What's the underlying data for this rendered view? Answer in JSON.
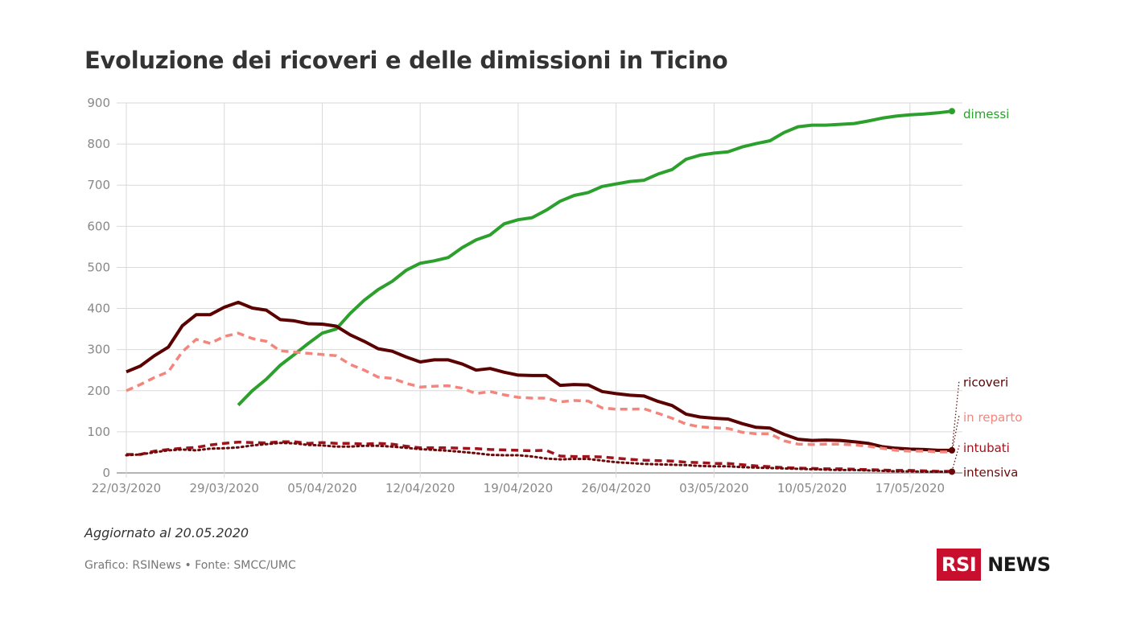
{
  "title": "Evoluzione dei ricoveri e delle dimissioni in Ticino",
  "updated": "Aggiornato al 20.05.2020",
  "source": "Grafico: RSINews • Fonte: SMCC/UMC",
  "logo": {
    "rsi": "RSI",
    "news": "NEWS"
  },
  "chart_data": {
    "type": "line",
    "title": "Evoluzione dei ricoveri e delle dimissioni in Ticino",
    "xlabel": "",
    "ylabel": "",
    "x_start": "22/03/2020",
    "x_end": "20/05/2020",
    "ylim": [
      0,
      900
    ],
    "yticks": [
      0,
      100,
      200,
      300,
      400,
      500,
      600,
      700,
      800,
      900
    ],
    "xtick_labels": [
      "22/03/2020",
      "29/03/2020",
      "05/04/2020",
      "12/04/2020",
      "19/04/2020",
      "26/04/2020",
      "03/05/2020",
      "10/05/2020",
      "17/05/2020"
    ],
    "grid": true,
    "series": [
      {
        "name": "dimessi",
        "color": "#2ca02c",
        "style": "solid",
        "start": "30/03/2020",
        "values": [
          165,
          200,
          228,
          262,
          288,
          315,
          340,
          350,
          388,
          420,
          446,
          466,
          493,
          510,
          516,
          524,
          548,
          567,
          579,
          606,
          616,
          621,
          639,
          661,
          675,
          682,
          697,
          703,
          709,
          712,
          727,
          738,
          763,
          773,
          778,
          781,
          793,
          801,
          808,
          828,
          842,
          846,
          846,
          848,
          850,
          856,
          863,
          868,
          871,
          873,
          876,
          880
        ]
      },
      {
        "name": "ricoveri",
        "color": "#5a0000",
        "style": "solid",
        "start": "22/03/2020",
        "values": [
          246,
          260,
          285,
          306,
          358,
          385,
          385,
          403,
          415,
          401,
          396,
          373,
          370,
          363,
          362,
          357,
          336,
          320,
          302,
          296,
          282,
          270,
          275,
          275,
          265,
          250,
          254,
          245,
          238,
          237,
          237,
          213,
          215,
          214,
          198,
          193,
          189,
          187,
          174,
          164,
          143,
          136,
          133,
          131,
          120,
          111,
          109,
          94,
          82,
          79,
          80,
          79,
          76,
          72,
          64,
          60,
          58,
          57,
          55,
          55
        ]
      },
      {
        "name": "in reparto",
        "color": "#f4857c",
        "style": "dashed",
        "start": "22/03/2020",
        "values": [
          200,
          215,
          232,
          246,
          295,
          325,
          315,
          332,
          340,
          327,
          320,
          297,
          294,
          291,
          288,
          285,
          264,
          250,
          233,
          230,
          218,
          209,
          211,
          212,
          206,
          193,
          198,
          190,
          184,
          182,
          182,
          173,
          176,
          175,
          158,
          155,
          155,
          156,
          145,
          133,
          119,
          112,
          110,
          108,
          99,
          95,
          95,
          78,
          70,
          69,
          70,
          70,
          68,
          65,
          60,
          55,
          53,
          53,
          51,
          51
        ]
      },
      {
        "name": "intubati",
        "color": "#a0121c",
        "style": "dashed",
        "start": "22/03/2020",
        "values": [
          45,
          45,
          53,
          57,
          60,
          62,
          68,
          72,
          75,
          74,
          73,
          76,
          76,
          72,
          74,
          72,
          72,
          70,
          72,
          70,
          65,
          61,
          61,
          61,
          60,
          59,
          57,
          56,
          55,
          54,
          55,
          41,
          40,
          40,
          39,
          36,
          33,
          31,
          30,
          29,
          26,
          25,
          23,
          23,
          20,
          17,
          15,
          13,
          12,
          11,
          10,
          10,
          9,
          8,
          7,
          6,
          6,
          5,
          4,
          4
        ]
      },
      {
        "name": "intensiva",
        "color": "#6b0a0a",
        "style": "dotted",
        "start": "22/03/2020",
        "values": [
          43,
          45,
          50,
          55,
          57,
          55,
          59,
          60,
          62,
          67,
          70,
          73,
          72,
          68,
          67,
          64,
          64,
          66,
          66,
          64,
          61,
          58,
          56,
          54,
          51,
          48,
          44,
          43,
          43,
          40,
          35,
          33,
          34,
          34,
          30,
          26,
          24,
          22,
          21,
          20,
          19,
          17,
          16,
          16,
          14,
          13,
          12,
          11,
          10,
          9,
          8,
          7,
          7,
          6,
          5,
          4,
          4,
          3,
          3,
          3
        ]
      }
    ]
  }
}
